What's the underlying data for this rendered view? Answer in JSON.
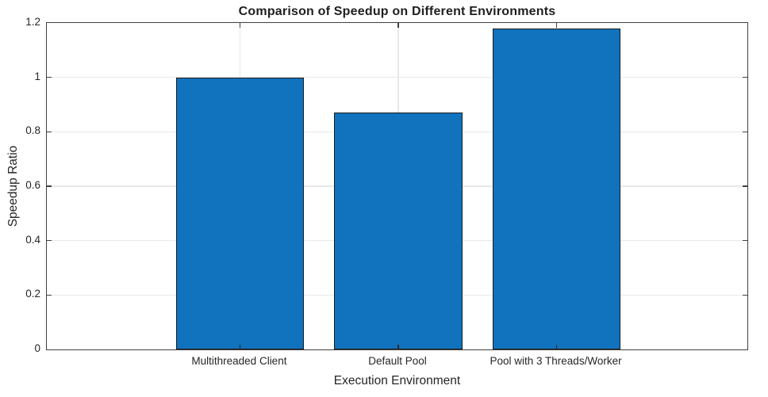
{
  "chart_data": {
    "type": "bar",
    "title": "Comparison of Speedup on Different Environments",
    "xlabel": "Execution Environment",
    "ylabel": "Speedup Ratio",
    "categories": [
      "Multithreaded Client",
      "Default Pool",
      "Pool with 3 Threads/Worker"
    ],
    "values": [
      1.0,
      0.87,
      1.18
    ],
    "ylim": [
      0,
      1.2
    ],
    "yticks": [
      0,
      0.2,
      0.4,
      0.6,
      0.8,
      1,
      1.2
    ],
    "ytick_labels": [
      "0",
      "0.2",
      "0.4",
      "0.6",
      "0.8",
      "1",
      "1.2"
    ],
    "grid": true,
    "legend": "none",
    "bar_color": "#1173bd",
    "bar_edge_color": "#1c1c1c",
    "axis_color": "#404040",
    "grid_color": "#e8e8e8",
    "background_color": "#ffffff"
  }
}
